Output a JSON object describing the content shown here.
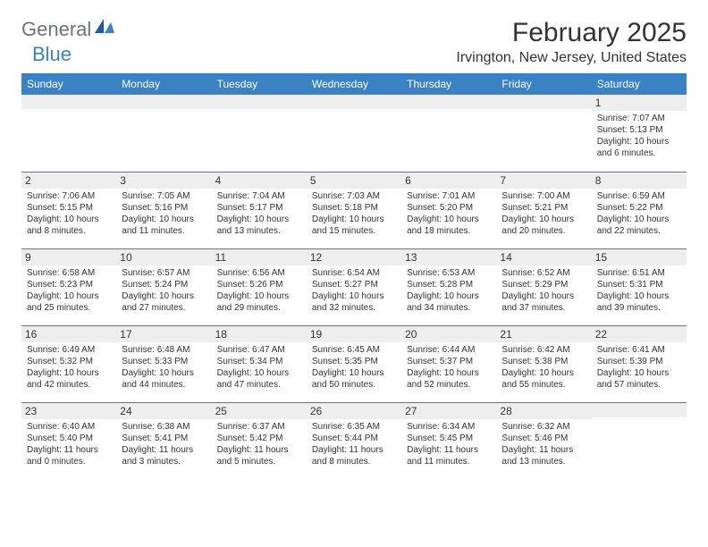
{
  "logo": {
    "text1": "General",
    "text2": "Blue"
  },
  "title": "February 2025",
  "location": "Irvington, New Jersey, United States",
  "colors": {
    "header_bg": "#3b82c4",
    "header_text": "#ffffff",
    "daynum_bg": "#eeeeee",
    "border": "#6b7280",
    "text": "#333333",
    "logo_gray": "#6b7280",
    "logo_blue": "#3b82c4"
  },
  "weekdays": [
    "Sunday",
    "Monday",
    "Tuesday",
    "Wednesday",
    "Thursday",
    "Friday",
    "Saturday"
  ],
  "weeks": [
    [
      {
        "day": "",
        "sunrise": "",
        "sunset": "",
        "daylight1": "",
        "daylight2": ""
      },
      {
        "day": "",
        "sunrise": "",
        "sunset": "",
        "daylight1": "",
        "daylight2": ""
      },
      {
        "day": "",
        "sunrise": "",
        "sunset": "",
        "daylight1": "",
        "daylight2": ""
      },
      {
        "day": "",
        "sunrise": "",
        "sunset": "",
        "daylight1": "",
        "daylight2": ""
      },
      {
        "day": "",
        "sunrise": "",
        "sunset": "",
        "daylight1": "",
        "daylight2": ""
      },
      {
        "day": "",
        "sunrise": "",
        "sunset": "",
        "daylight1": "",
        "daylight2": ""
      },
      {
        "day": "1",
        "sunrise": "Sunrise: 7:07 AM",
        "sunset": "Sunset: 5:13 PM",
        "daylight1": "Daylight: 10 hours",
        "daylight2": "and 6 minutes."
      }
    ],
    [
      {
        "day": "2",
        "sunrise": "Sunrise: 7:06 AM",
        "sunset": "Sunset: 5:15 PM",
        "daylight1": "Daylight: 10 hours",
        "daylight2": "and 8 minutes."
      },
      {
        "day": "3",
        "sunrise": "Sunrise: 7:05 AM",
        "sunset": "Sunset: 5:16 PM",
        "daylight1": "Daylight: 10 hours",
        "daylight2": "and 11 minutes."
      },
      {
        "day": "4",
        "sunrise": "Sunrise: 7:04 AM",
        "sunset": "Sunset: 5:17 PM",
        "daylight1": "Daylight: 10 hours",
        "daylight2": "and 13 minutes."
      },
      {
        "day": "5",
        "sunrise": "Sunrise: 7:03 AM",
        "sunset": "Sunset: 5:18 PM",
        "daylight1": "Daylight: 10 hours",
        "daylight2": "and 15 minutes."
      },
      {
        "day": "6",
        "sunrise": "Sunrise: 7:01 AM",
        "sunset": "Sunset: 5:20 PM",
        "daylight1": "Daylight: 10 hours",
        "daylight2": "and 18 minutes."
      },
      {
        "day": "7",
        "sunrise": "Sunrise: 7:00 AM",
        "sunset": "Sunset: 5:21 PM",
        "daylight1": "Daylight: 10 hours",
        "daylight2": "and 20 minutes."
      },
      {
        "day": "8",
        "sunrise": "Sunrise: 6:59 AM",
        "sunset": "Sunset: 5:22 PM",
        "daylight1": "Daylight: 10 hours",
        "daylight2": "and 22 minutes."
      }
    ],
    [
      {
        "day": "9",
        "sunrise": "Sunrise: 6:58 AM",
        "sunset": "Sunset: 5:23 PM",
        "daylight1": "Daylight: 10 hours",
        "daylight2": "and 25 minutes."
      },
      {
        "day": "10",
        "sunrise": "Sunrise: 6:57 AM",
        "sunset": "Sunset: 5:24 PM",
        "daylight1": "Daylight: 10 hours",
        "daylight2": "and 27 minutes."
      },
      {
        "day": "11",
        "sunrise": "Sunrise: 6:56 AM",
        "sunset": "Sunset: 5:26 PM",
        "daylight1": "Daylight: 10 hours",
        "daylight2": "and 29 minutes."
      },
      {
        "day": "12",
        "sunrise": "Sunrise: 6:54 AM",
        "sunset": "Sunset: 5:27 PM",
        "daylight1": "Daylight: 10 hours",
        "daylight2": "and 32 minutes."
      },
      {
        "day": "13",
        "sunrise": "Sunrise: 6:53 AM",
        "sunset": "Sunset: 5:28 PM",
        "daylight1": "Daylight: 10 hours",
        "daylight2": "and 34 minutes."
      },
      {
        "day": "14",
        "sunrise": "Sunrise: 6:52 AM",
        "sunset": "Sunset: 5:29 PM",
        "daylight1": "Daylight: 10 hours",
        "daylight2": "and 37 minutes."
      },
      {
        "day": "15",
        "sunrise": "Sunrise: 6:51 AM",
        "sunset": "Sunset: 5:31 PM",
        "daylight1": "Daylight: 10 hours",
        "daylight2": "and 39 minutes."
      }
    ],
    [
      {
        "day": "16",
        "sunrise": "Sunrise: 6:49 AM",
        "sunset": "Sunset: 5:32 PM",
        "daylight1": "Daylight: 10 hours",
        "daylight2": "and 42 minutes."
      },
      {
        "day": "17",
        "sunrise": "Sunrise: 6:48 AM",
        "sunset": "Sunset: 5:33 PM",
        "daylight1": "Daylight: 10 hours",
        "daylight2": "and 44 minutes."
      },
      {
        "day": "18",
        "sunrise": "Sunrise: 6:47 AM",
        "sunset": "Sunset: 5:34 PM",
        "daylight1": "Daylight: 10 hours",
        "daylight2": "and 47 minutes."
      },
      {
        "day": "19",
        "sunrise": "Sunrise: 6:45 AM",
        "sunset": "Sunset: 5:35 PM",
        "daylight1": "Daylight: 10 hours",
        "daylight2": "and 50 minutes."
      },
      {
        "day": "20",
        "sunrise": "Sunrise: 6:44 AM",
        "sunset": "Sunset: 5:37 PM",
        "daylight1": "Daylight: 10 hours",
        "daylight2": "and 52 minutes."
      },
      {
        "day": "21",
        "sunrise": "Sunrise: 6:42 AM",
        "sunset": "Sunset: 5:38 PM",
        "daylight1": "Daylight: 10 hours",
        "daylight2": "and 55 minutes."
      },
      {
        "day": "22",
        "sunrise": "Sunrise: 6:41 AM",
        "sunset": "Sunset: 5:39 PM",
        "daylight1": "Daylight: 10 hours",
        "daylight2": "and 57 minutes."
      }
    ],
    [
      {
        "day": "23",
        "sunrise": "Sunrise: 6:40 AM",
        "sunset": "Sunset: 5:40 PM",
        "daylight1": "Daylight: 11 hours",
        "daylight2": "and 0 minutes."
      },
      {
        "day": "24",
        "sunrise": "Sunrise: 6:38 AM",
        "sunset": "Sunset: 5:41 PM",
        "daylight1": "Daylight: 11 hours",
        "daylight2": "and 3 minutes."
      },
      {
        "day": "25",
        "sunrise": "Sunrise: 6:37 AM",
        "sunset": "Sunset: 5:42 PM",
        "daylight1": "Daylight: 11 hours",
        "daylight2": "and 5 minutes."
      },
      {
        "day": "26",
        "sunrise": "Sunrise: 6:35 AM",
        "sunset": "Sunset: 5:44 PM",
        "daylight1": "Daylight: 11 hours",
        "daylight2": "and 8 minutes."
      },
      {
        "day": "27",
        "sunrise": "Sunrise: 6:34 AM",
        "sunset": "Sunset: 5:45 PM",
        "daylight1": "Daylight: 11 hours",
        "daylight2": "and 11 minutes."
      },
      {
        "day": "28",
        "sunrise": "Sunrise: 6:32 AM",
        "sunset": "Sunset: 5:46 PM",
        "daylight1": "Daylight: 11 hours",
        "daylight2": "and 13 minutes."
      },
      {
        "day": "",
        "sunrise": "",
        "sunset": "",
        "daylight1": "",
        "daylight2": ""
      }
    ]
  ]
}
